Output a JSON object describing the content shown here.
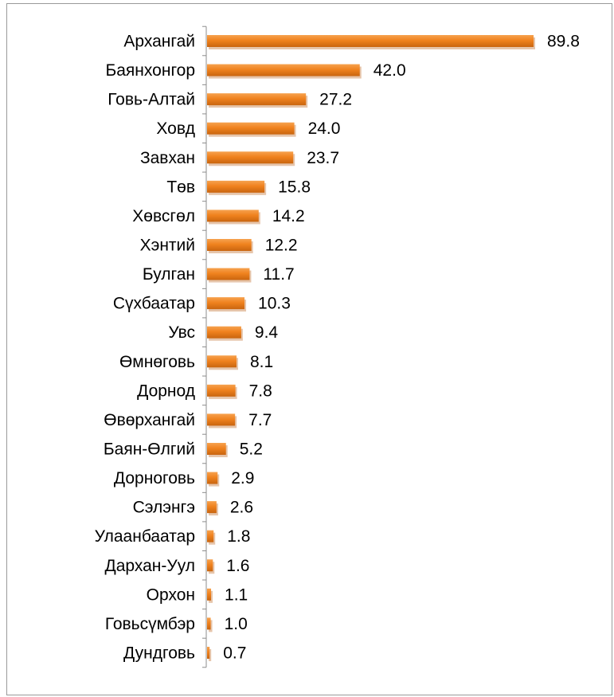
{
  "chart_data": {
    "type": "bar",
    "orientation": "horizontal",
    "title": "",
    "xlabel": "",
    "ylabel": "",
    "categories": [
      "Архангай",
      "Баянхонгор",
      "Говь-Алтай",
      "Ховд",
      "Завхан",
      "Төв",
      "Хөвсгөл",
      "Хэнтий",
      "Булган",
      "Сүхбаатар",
      "Увс",
      "Өмнөговь",
      "Дорнод",
      "Өвөрхангай",
      "Баян-Өлгий",
      "Дорноговь",
      "Сэлэнгэ",
      "Улаанбаатар",
      "Дархан-Уул",
      "Орхон",
      "Говьсүмбэр",
      "Дундговь"
    ],
    "values": [
      89.8,
      42.0,
      27.2,
      24.0,
      23.7,
      15.8,
      14.2,
      12.2,
      11.7,
      10.3,
      9.4,
      8.1,
      7.8,
      7.7,
      5.2,
      2.9,
      2.6,
      1.8,
      1.6,
      1.1,
      1.0,
      0.7
    ],
    "value_labels": [
      "89.8",
      "42.0",
      "27.2",
      "24.0",
      "23.7",
      "15.8",
      "14.2",
      "12.2",
      "11.7",
      "10.3",
      "9.4",
      "8.1",
      "7.8",
      "7.7",
      "5.2",
      "2.9",
      "2.6",
      "1.8",
      "1.6",
      "1.1",
      "1.0",
      "0.7"
    ],
    "xlim": [
      0,
      89.8
    ],
    "grid": false,
    "legend": "none",
    "bar_color": "#f0821e",
    "bar_shadow_color": "#b85a0e"
  }
}
